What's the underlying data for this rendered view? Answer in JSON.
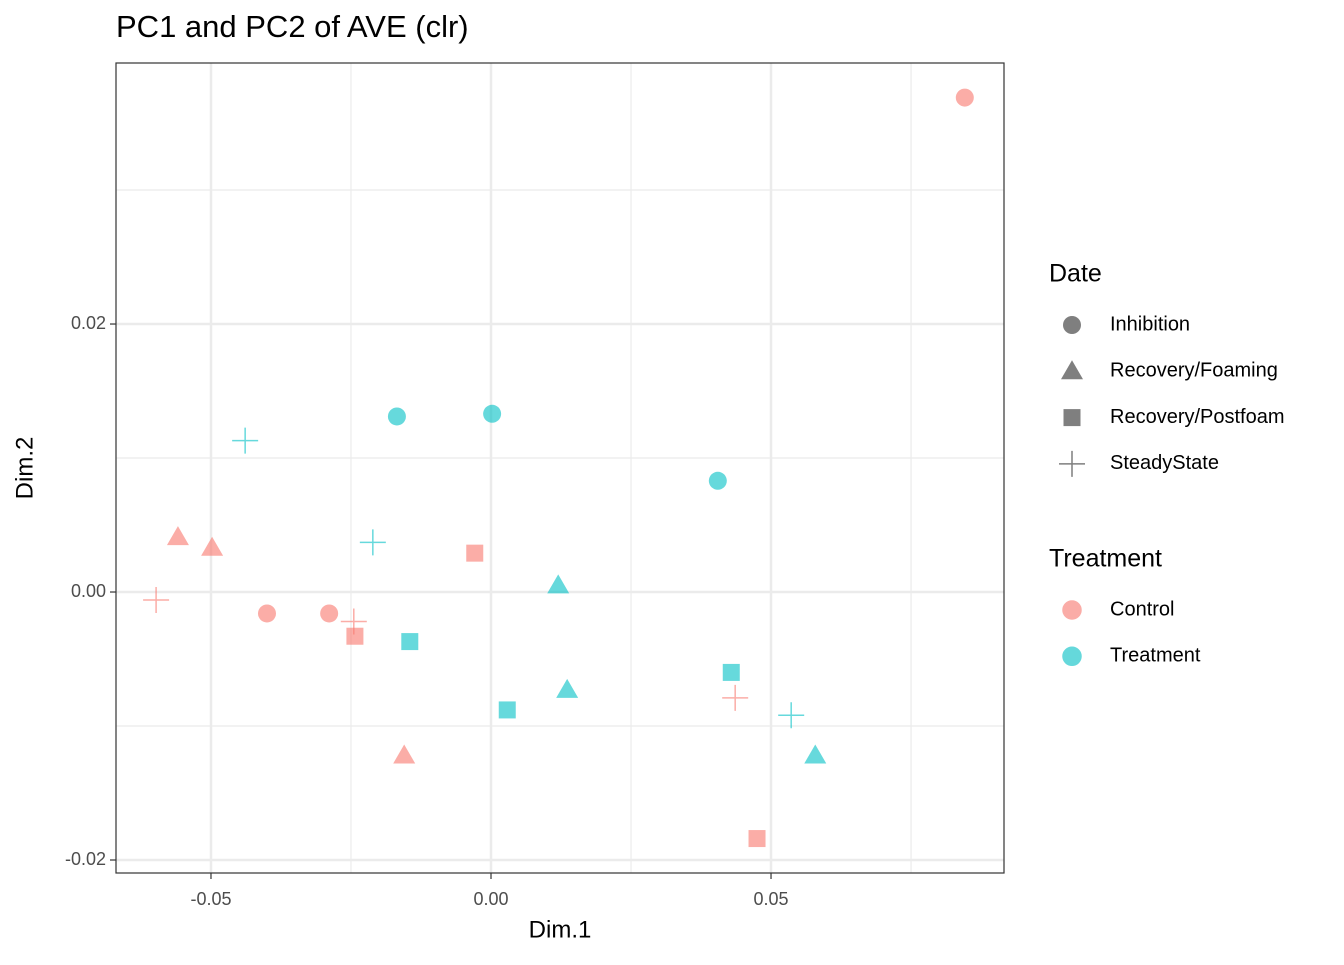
{
  "chart_data": {
    "type": "scatter",
    "title": "PC1 and PC2 of AVE (clr)",
    "xlabel": "Dim.1",
    "ylabel": "Dim.2",
    "xlim": [
      -0.06696,
      0.0916
    ],
    "ylim": [
      -0.02097,
      0.03948
    ],
    "xticks": [
      {
        "value": -0.05,
        "label": "-0.05"
      },
      {
        "value": 0,
        "label": "0.00"
      },
      {
        "value": 0.05,
        "label": "0.05"
      }
    ],
    "yticks": [
      {
        "value": -0.02,
        "label": "-0.02"
      },
      {
        "value": 0,
        "label": "0.00"
      },
      {
        "value": 0.02,
        "label": "0.02"
      }
    ],
    "xminor": [
      -0.025,
      0.025,
      0.075
    ],
    "yminor": [
      -0.01,
      0.01,
      0.03
    ],
    "grid": true,
    "shape_legend": {
      "title": "Date",
      "entries": [
        "Inhibition",
        "Recovery/Foaming",
        "Recovery/Postfoam",
        "SteadyState"
      ],
      "shapes": [
        "circle",
        "triangle",
        "square",
        "plus"
      ]
    },
    "legend_title": "Treatment",
    "series": [
      {
        "name": "Control",
        "color": "#F8766D",
        "by_date": [
          {
            "x": [
              0.0846,
              -0.04,
              -0.0289
            ],
            "y": [
              0.0369,
              -0.0016,
              -0.0016
            ]
          },
          {
            "x": [
              -0.0559,
              -0.0498,
              -0.0155
            ],
            "y": [
              0.0041,
              0.0033,
              -0.0122
            ]
          },
          {
            "x": [
              -0.0029,
              -0.0243,
              0.0475
            ],
            "y": [
              0.0029,
              -0.0033,
              -0.0184
            ]
          },
          {
            "x": [
              -0.0598,
              -0.0245,
              0.0436
            ],
            "y": [
              -0.0006,
              -0.0022,
              -0.0079
            ]
          }
        ]
      },
      {
        "name": "Treatment",
        "color": "#00BFC4",
        "by_date": [
          {
            "x": [
              -0.0168,
              0.0002,
              0.0405
            ],
            "y": [
              0.0131,
              0.0133,
              0.0083
            ]
          },
          {
            "x": [
              0.012,
              0.0136,
              0.0579
            ],
            "y": [
              0.0005,
              -0.0073,
              -0.0122
            ]
          },
          {
            "x": [
              -0.0145,
              0.0029,
              0.0429
            ],
            "y": [
              -0.0037,
              -0.0088,
              -0.006
            ]
          },
          {
            "x": [
              -0.0439,
              -0.0211,
              0.0536
            ],
            "y": [
              0.0113,
              0.0037,
              -0.0092
            ]
          }
        ]
      }
    ]
  }
}
